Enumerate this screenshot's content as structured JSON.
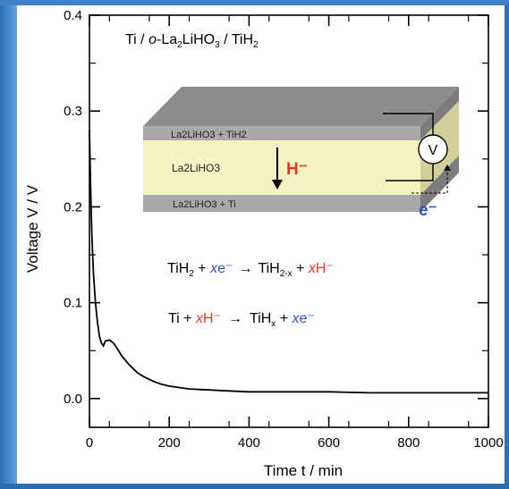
{
  "chart_data": {
    "type": "line",
    "title": "Ti / o-La2LiHO3 / TiH2",
    "xlabel": "Time t / min",
    "ylabel": "Voltage V / V",
    "xlim": [
      0,
      1000
    ],
    "ylim": [
      -0.03,
      0.4
    ],
    "x_ticks": [
      0,
      200,
      400,
      600,
      800,
      1000
    ],
    "y_ticks": [
      0.0,
      0.1,
      0.2,
      0.3,
      0.4
    ],
    "x_tick_labels": [
      "0",
      "200",
      "400",
      "600",
      "800",
      "1000"
    ],
    "y_tick_labels": [
      "0.0",
      "0.1",
      "0.2",
      "0.3",
      "0.4"
    ],
    "grid": false,
    "series": [
      {
        "color": "#000000",
        "x": [
          0,
          3,
          6,
          10,
          15,
          20,
          25,
          30,
          35,
          40,
          50,
          60,
          70,
          80,
          100,
          120,
          140,
          160,
          180,
          200,
          250,
          300,
          350,
          400,
          500,
          600,
          700,
          800,
          900,
          1000
        ],
        "y": [
          0.28,
          0.22,
          0.17,
          0.13,
          0.1,
          0.08,
          0.065,
          0.058,
          0.055,
          0.06,
          0.061,
          0.058,
          0.052,
          0.045,
          0.035,
          0.027,
          0.022,
          0.018,
          0.015,
          0.013,
          0.01,
          0.009,
          0.008,
          0.007,
          0.007,
          0.007,
          0.006,
          0.006,
          0.006,
          0.006
        ]
      }
    ]
  },
  "title_parts": {
    "a": "Ti / ",
    "b": "o",
    "c": "-La",
    "d": "2",
    "e": "LiHO",
    "f": "3",
    "g": " / TiH",
    "h": "2"
  },
  "inset": {
    "top_layer_label": "La2LiHO3 + TiH2",
    "middle_layer_label": "La2LiHO3",
    "bottom_layer_label": "La2LiHO3 + Ti",
    "hydride_ion": "H⁻",
    "voltmeter_symbol": "V",
    "electron": "e⁻",
    "colors": {
      "top_face": "#8c8c8c",
      "electrode": "#a9a9a9",
      "electrolyte": "#f4f3c4",
      "side_electrolyte": "#d2d09a",
      "side_electrode": "#7d7d7d",
      "hydride_red": "#e83a2a",
      "electron_blue": "#2d55c8"
    }
  },
  "equations": {
    "eq1": {
      "a": "TiH",
      "b": "2",
      "c": " + ",
      "d": "x",
      "e": "e⁻",
      "arrow": "→",
      "f": "TiH",
      "g": "2-x",
      "h": " + ",
      "i": "x",
      "j": "H⁻"
    },
    "eq2": {
      "a": "Ti + ",
      "b": "x",
      "c": "H⁻",
      "arrow": "→",
      "d": "TiH",
      "e": "x",
      "f": " + ",
      "g": "x",
      "h": "e⁻"
    }
  },
  "colors": {
    "frame": "#2f6fb2",
    "red": "#e83a2a",
    "blue": "#2d55c8",
    "curve": "#000000"
  }
}
